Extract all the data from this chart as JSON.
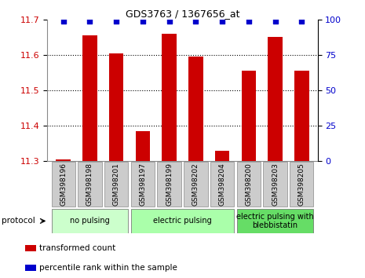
{
  "title": "GDS3763 / 1367656_at",
  "samples": [
    "GSM398196",
    "GSM398198",
    "GSM398201",
    "GSM398197",
    "GSM398199",
    "GSM398202",
    "GSM398204",
    "GSM398200",
    "GSM398203",
    "GSM398205"
  ],
  "transformed_counts": [
    11.305,
    11.655,
    11.605,
    11.385,
    11.66,
    11.595,
    11.33,
    11.555,
    11.65,
    11.555
  ],
  "percentile_ranks": [
    99,
    99,
    99,
    99,
    99,
    99,
    99,
    99,
    99,
    99
  ],
  "ylim_left": [
    11.3,
    11.7
  ],
  "ylim_right": [
    0,
    100
  ],
  "yticks_left": [
    11.3,
    11.4,
    11.5,
    11.6,
    11.7
  ],
  "yticks_right": [
    0,
    25,
    50,
    75,
    100
  ],
  "bar_color": "#cc0000",
  "dot_color": "#0000cc",
  "groups": [
    {
      "label": "no pulsing",
      "start": 0,
      "end": 3,
      "color": "#ccffcc"
    },
    {
      "label": "electric pulsing",
      "start": 3,
      "end": 7,
      "color": "#aaffaa"
    },
    {
      "label": "electric pulsing with\nblebbistatin",
      "start": 7,
      "end": 10,
      "color": "#66dd66"
    }
  ],
  "protocol_label": "protocol",
  "legend_items": [
    {
      "color": "#cc0000",
      "label": "transformed count"
    },
    {
      "color": "#0000cc",
      "label": "percentile rank within the sample"
    }
  ],
  "tick_label_color_left": "#cc0000",
  "tick_label_color_right": "#0000cc",
  "bar_width": 0.55,
  "background_color": "#ffffff",
  "sample_box_color": "#cccccc",
  "grid_ticks": [
    11.4,
    11.5,
    11.6
  ],
  "right_axis_label": "100%"
}
